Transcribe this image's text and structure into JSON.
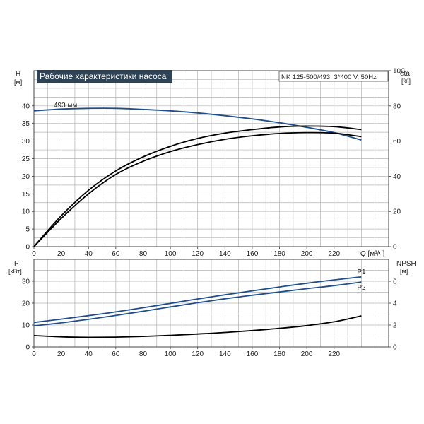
{
  "chart_data": [
    {
      "type": "line",
      "title": "Рабочие характеристики насоса",
      "subtitle": "NK 125-500/493, 3*400 V, 50Hz",
      "xlabel": "Q",
      "xunit": "[м³/ч]",
      "xlim": [
        0,
        260
      ],
      "xticks": [
        0,
        20,
        40,
        60,
        80,
        100,
        120,
        140,
        160,
        180,
        200,
        220
      ],
      "ylabel_left": "H",
      "yunit_left": "[м]",
      "ylim_left": [
        0,
        50
      ],
      "yticks_left": [
        0,
        5,
        10,
        15,
        20,
        25,
        30,
        35,
        40
      ],
      "ylabel_right": "eta",
      "yunit_right": "[%]",
      "ylim_right": [
        0,
        100
      ],
      "yticks_right": [
        0,
        20,
        40,
        60,
        80,
        100
      ],
      "grid": true,
      "series": [
        {
          "name": "493 мм",
          "axis": "left",
          "color": "#1f4e8c",
          "x": [
            0,
            20,
            40,
            60,
            80,
            100,
            120,
            140,
            160,
            180,
            200,
            220,
            240
          ],
          "y": [
            38.6,
            39.1,
            39.3,
            39.3,
            39.0,
            38.6,
            38.0,
            37.2,
            36.3,
            35.2,
            33.9,
            32.4,
            30.3
          ]
        },
        {
          "axis": "right",
          "color": "#000000",
          "x": [
            0,
            20,
            40,
            60,
            80,
            100,
            120,
            140,
            160,
            180,
            200,
            220,
            240
          ],
          "y": [
            0,
            17.5,
            32,
            43,
            51,
            57,
            61.5,
            64.5,
            66.5,
            68,
            68.5,
            68.2,
            66.5
          ]
        },
        {
          "axis": "right",
          "color": "#000000",
          "x": [
            0,
            20,
            40,
            60,
            80,
            100,
            120,
            140,
            160,
            180,
            200,
            220,
            240
          ],
          "y": [
            0,
            16,
            30,
            41,
            48.5,
            54,
            58,
            61,
            63,
            64.3,
            64.8,
            64.5,
            62.5
          ]
        }
      ]
    },
    {
      "type": "line",
      "xlim": [
        0,
        260
      ],
      "xticks": [
        0,
        20,
        40,
        60,
        80,
        100,
        120,
        140,
        160,
        180,
        200,
        220
      ],
      "ylabel_left": "P",
      "yunit_left": "[кВт]",
      "ylim_left": [
        0,
        40
      ],
      "yticks_left": [
        0,
        10,
        20,
        30
      ],
      "ylabel_right": "NPSH",
      "yunit_right": "[м]",
      "ylim_right": [
        0,
        8
      ],
      "yticks_right": [
        0,
        2,
        4,
        6
      ],
      "grid": true,
      "series": [
        {
          "name": "P1",
          "axis": "left",
          "color": "#1f4e8c",
          "x": [
            0,
            20,
            40,
            60,
            80,
            100,
            120,
            140,
            160,
            180,
            200,
            220,
            240
          ],
          "y": [
            11.2,
            12.7,
            14.3,
            16.0,
            17.9,
            19.9,
            21.9,
            23.8,
            25.6,
            27.4,
            29.1,
            30.6,
            32.0
          ]
        },
        {
          "name": "P2",
          "axis": "left",
          "color": "#1f4e8c",
          "x": [
            0,
            20,
            40,
            60,
            80,
            100,
            120,
            140,
            160,
            180,
            200,
            220,
            240
          ],
          "y": [
            9.6,
            11.0,
            12.6,
            14.4,
            16.3,
            18.3,
            20.2,
            22.0,
            23.6,
            25.1,
            26.6,
            28.0,
            29.6
          ]
        },
        {
          "name": "NPSH",
          "axis": "right",
          "color": "#000000",
          "x": [
            0,
            20,
            40,
            60,
            80,
            100,
            120,
            140,
            160,
            180,
            200,
            220,
            240
          ],
          "y": [
            1.04,
            0.92,
            0.88,
            0.9,
            0.96,
            1.06,
            1.18,
            1.32,
            1.5,
            1.7,
            1.95,
            2.3,
            2.84
          ]
        }
      ]
    }
  ]
}
